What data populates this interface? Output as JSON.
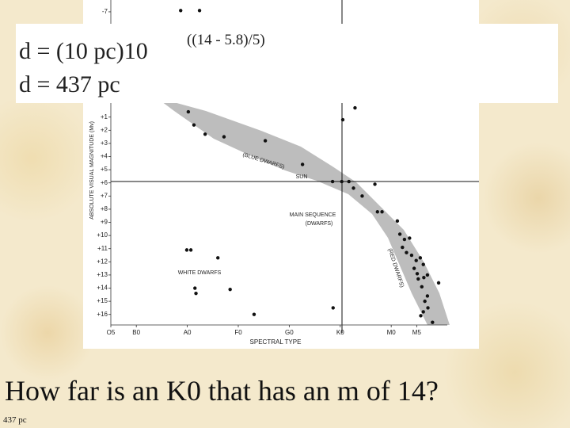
{
  "slide": {
    "formula": "d = (10 pc)10",
    "exponent": "((14 - 5.8)/5)",
    "result": "d = 437 pc",
    "question": "How far is an K0 that has an m of 14?",
    "note": "437 pc"
  },
  "chart_data": {
    "type": "scatter",
    "x_label": "SPECTRAL TYPE",
    "y_label": "ABSOLUTE VISUAL MAGNITUDE (Mv)",
    "annotations": [
      "(BLUE DWARFS)",
      "SUN",
      "MAIN SEQUENCE",
      "(DWARFS)",
      "(RED DWARFS)",
      "WHITE DWARFS"
    ],
    "xlim": [
      5,
      71
    ],
    "ylim": [
      -7.9,
      16.8
    ],
    "y_inverted": true,
    "color": "#111111",
    "xticks": [
      {
        "value": 5,
        "label": "O5"
      },
      {
        "value": 10,
        "label": "B0"
      },
      {
        "value": 20,
        "label": "A0"
      },
      {
        "value": 30,
        "label": "F0"
      },
      {
        "value": 40,
        "label": "G0"
      },
      {
        "value": 50,
        "label": "K0"
      },
      {
        "value": 60,
        "label": "M0"
      },
      {
        "value": 65,
        "label": "M5"
      }
    ],
    "yticks": [
      -7,
      {
        "value": 1,
        "label": "+1"
      },
      {
        "value": 2,
        "label": "+2"
      },
      {
        "value": 3,
        "label": "+3"
      },
      {
        "value": 4,
        "label": "+4"
      },
      {
        "value": 5,
        "label": "+5"
      },
      {
        "value": 6,
        "label": "+6"
      },
      {
        "value": 7,
        "label": "+7"
      },
      {
        "value": 8,
        "label": "+8"
      },
      {
        "value": 9,
        "label": "+9"
      },
      {
        "value": 10,
        "label": "+10"
      },
      {
        "value": 11,
        "label": "+11"
      },
      {
        "value": 12,
        "label": "+12"
      },
      {
        "value": 13,
        "label": "+13"
      },
      {
        "value": 14,
        "label": "+14"
      },
      {
        "value": 15,
        "label": "+15"
      },
      {
        "value": 16,
        "label": "+16"
      }
    ],
    "x": [
      18.7,
      22.4,
      20.2,
      21.3,
      23.5,
      27.2,
      35.3,
      42.6,
      52.9,
      50.5,
      48.5,
      50.3,
      51.7,
      52.6,
      54.3,
      56.8,
      57.3,
      58.2,
      61.2,
      61.7,
      62.6,
      63.6,
      62.2,
      63.0,
      64.0,
      64.9,
      65.7,
      66.3,
      64.5,
      65.1,
      66.4,
      67.1,
      65.3,
      66.0,
      67.1,
      66.6,
      67.2,
      66.3,
      65.8,
      68.1,
      69.3,
      19.9,
      20.7,
      26.0,
      21.5,
      21.7,
      28.4,
      33.1,
      48.6
    ],
    "values": [
      -7.1,
      -7.1,
      0.6,
      1.6,
      2.3,
      2.5,
      2.8,
      4.6,
      0.3,
      1.2,
      5.9,
      5.9,
      5.9,
      6.4,
      7.0,
      6.1,
      8.2,
      8.2,
      8.9,
      9.9,
      10.3,
      10.2,
      10.9,
      11.3,
      11.5,
      11.9,
      11.7,
      12.2,
      12.5,
      12.9,
      13.2,
      13.0,
      13.3,
      13.9,
      14.6,
      15.0,
      15.5,
      15.8,
      16.1,
      16.6,
      13.6,
      11.1,
      11.1,
      11.7,
      14.0,
      14.4,
      14.1,
      16.0,
      15.5
    ]
  }
}
